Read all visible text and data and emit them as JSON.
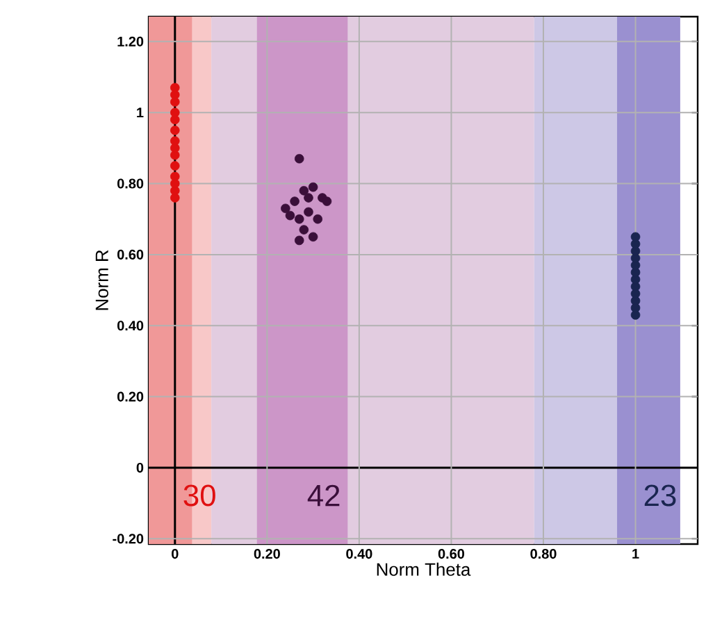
{
  "chart_data": {
    "type": "scatter",
    "xlabel": "Norm Theta",
    "ylabel": "Norm R",
    "xlim": [
      -0.057,
      1.135
    ],
    "ylim": [
      -0.215,
      1.27
    ],
    "xticks": [
      0,
      {
        "value": 0.2,
        "label": "0.20"
      },
      {
        "value": 0.4,
        "label": "0.40"
      },
      {
        "value": 0.6,
        "label": "0.60"
      },
      {
        "value": 0.8,
        "label": "0.80"
      },
      1
    ],
    "yticks": [
      {
        "value": -0.2,
        "label": "-0.20"
      },
      0,
      {
        "value": 0.2,
        "label": "0.20"
      },
      {
        "value": 0.4,
        "label": "0.40"
      },
      {
        "value": 0.6,
        "label": "0.60"
      },
      {
        "value": 0.8,
        "label": "0.80"
      },
      1,
      {
        "value": 1.2,
        "label": "1.20"
      }
    ],
    "grid": true,
    "marker": "circle",
    "series": [
      {
        "color": "#e01010",
        "x": [
          0,
          0,
          0,
          0,
          0,
          0,
          0,
          0,
          0,
          0,
          0,
          0,
          0,
          0
        ],
        "values": [
          0.76,
          0.78,
          0.8,
          0.82,
          0.85,
          0.88,
          0.9,
          0.92,
          0.95,
          0.98,
          1.0,
          1.03,
          1.05,
          1.07
        ]
      },
      {
        "color": "#3a0f3a",
        "x": [
          0.27,
          0.24,
          0.26,
          0.28,
          0.3,
          0.32,
          0.33,
          0.29,
          0.27,
          0.31,
          0.28,
          0.3,
          0.27,
          0.25,
          0.29
        ],
        "values": [
          0.87,
          0.73,
          0.75,
          0.78,
          0.79,
          0.76,
          0.75,
          0.72,
          0.7,
          0.7,
          0.67,
          0.65,
          0.64,
          0.71,
          0.76
        ]
      },
      {
        "color": "#1a2550",
        "x": [
          1,
          1,
          1,
          1,
          1,
          1,
          1,
          1,
          1,
          1,
          1,
          1
        ],
        "values": [
          0.43,
          0.45,
          0.47,
          0.49,
          0.51,
          0.53,
          0.55,
          0.57,
          0.59,
          0.61,
          0.63,
          0.65
        ]
      }
    ],
    "bands": [
      {
        "axis": "x",
        "from": -0.057,
        "to": 0.079,
        "color": "#f8c8c8"
      },
      {
        "axis": "x",
        "from": 0.079,
        "to": 0.78,
        "color": "#e2cce0"
      },
      {
        "axis": "x",
        "from": 0.78,
        "to": 1.097,
        "color": "#cdc8e6"
      },
      {
        "axis": "x",
        "from": -0.057,
        "to": 0.037,
        "color": "#f09898"
      },
      {
        "axis": "x",
        "from": 0.178,
        "to": 0.375,
        "color": "#cc96c8"
      },
      {
        "axis": "x",
        "from": 0.96,
        "to": 1.097,
        "color": "#9a90d0"
      }
    ],
    "annotations": [
      "30",
      "42",
      "23"
    ]
  }
}
